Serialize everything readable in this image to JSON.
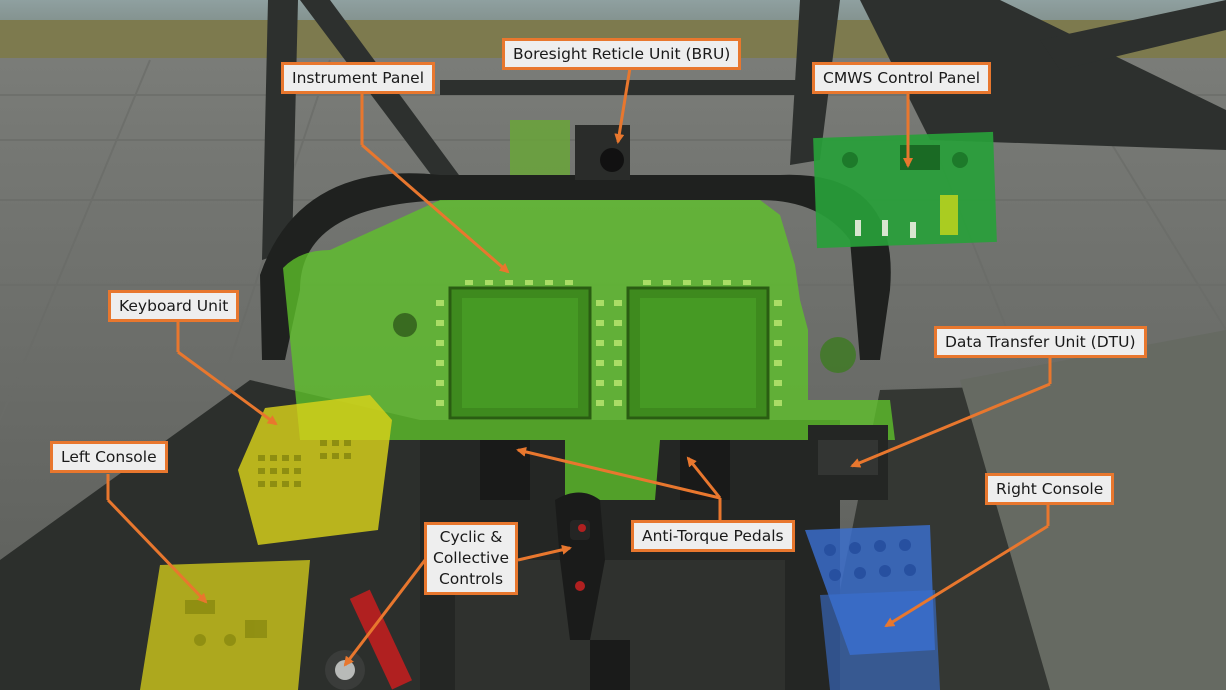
{
  "labels": {
    "bru": "Boresight Reticle Unit (BRU)",
    "instrument_panel": "Instrument Panel",
    "cmws": "CMWS Control Panel",
    "keyboard_unit": "Keyboard Unit",
    "dtu": "Data Transfer Unit (DTU)",
    "left_console": "Left Console",
    "right_console": "Right Console",
    "cyclic_line1": "Cyclic &",
    "cyclic_line2": "Collective",
    "cyclic_line3": "Controls",
    "pedals": "Anti-Torque Pedals"
  },
  "colors": {
    "callout_border": "#e8772e",
    "callout_bg": "#eeeeee",
    "leader_line": "#e8772e",
    "highlight_green": "#5fc32a",
    "highlight_yellow": "#d8d21a",
    "highlight_blue": "#3a6fd0",
    "cmws_green": "#28a03a"
  }
}
